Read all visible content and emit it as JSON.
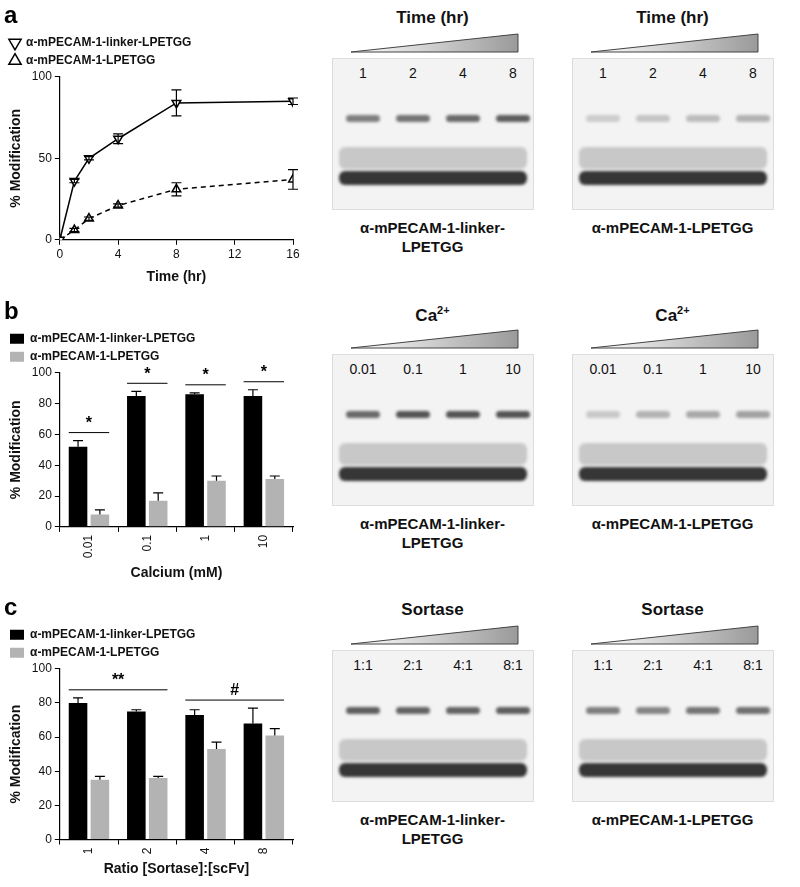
{
  "chart_data": [
    {
      "type": "line",
      "title": "a",
      "x": [
        0,
        1,
        2,
        4,
        8,
        16
      ],
      "xlim": [
        0,
        16
      ],
      "xticks": [
        0,
        4,
        8,
        12,
        16
      ],
      "ylim": [
        0,
        100
      ],
      "yticks": [
        0,
        50,
        100
      ],
      "xlabel": "Time (hr)",
      "ylabel": "% Modification",
      "grid": false,
      "legend": "top-left",
      "series": [
        {
          "name": "α-mPECAM-1-linker-LPETGG",
          "color": "#000000",
          "marker": "triangle-down",
          "line_style": "solid",
          "values": [
            0,
            36,
            50,
            62,
            84,
            85
          ],
          "errors": [
            0,
            1,
            1,
            3,
            8,
            2
          ]
        },
        {
          "name": "α-mPECAM-1-LPETGG",
          "color": "#000000",
          "marker": "triangle-up",
          "line_style": "dashed",
          "values": [
            0,
            6,
            13,
            21,
            31,
            37
          ],
          "errors": [
            0,
            1,
            1,
            1,
            4,
            6
          ]
        }
      ]
    },
    {
      "type": "bar",
      "title": "b",
      "categories": [
        "0.01",
        "0.1",
        "1",
        "10"
      ],
      "ylim": [
        0,
        100
      ],
      "yticks": [
        0,
        20,
        40,
        60,
        80,
        100
      ],
      "xlabel": "Calcium (mM)",
      "ylabel": "% Modification",
      "grid": false,
      "legend": "top-left",
      "series": [
        {
          "name": "α-mPECAM-1-linker-LPETGG",
          "color": "#000000",
          "values": [
            52,
            85,
            86,
            85
          ],
          "errors": [
            4,
            3,
            1,
            4
          ]
        },
        {
          "name": "α-mPECAM-1-LPETGG",
          "color": "#b3b3b3",
          "values": [
            8,
            17,
            30,
            31
          ],
          "errors": [
            3,
            5,
            3,
            2
          ]
        }
      ],
      "annotations": [
        {
          "text": "*",
          "categories": [
            "0.01"
          ]
        },
        {
          "text": "*",
          "categories": [
            "0.1"
          ]
        },
        {
          "text": "*",
          "categories": [
            "1"
          ]
        },
        {
          "text": "*",
          "categories": [
            "10"
          ]
        }
      ]
    },
    {
      "type": "bar",
      "title": "c",
      "categories": [
        "1",
        "2",
        "4",
        "8"
      ],
      "ylim": [
        0,
        100
      ],
      "yticks": [
        0,
        20,
        40,
        60,
        80,
        100
      ],
      "xlabel": "Ratio [Sortase]:[scFv]",
      "ylabel": "% Modification",
      "grid": false,
      "legend": "top-left",
      "series": [
        {
          "name": "α-mPECAM-1-linker-LPETGG",
          "color": "#000000",
          "values": [
            80,
            75,
            73,
            68
          ],
          "errors": [
            3,
            1,
            3,
            9
          ]
        },
        {
          "name": "α-mPECAM-1-LPETGG",
          "color": "#b3b3b3",
          "values": [
            35,
            36,
            53,
            61
          ],
          "errors": [
            2,
            1,
            4,
            4
          ]
        }
      ],
      "annotations": [
        {
          "text": "**",
          "categories": [
            "1",
            "2"
          ]
        },
        {
          "text": "#",
          "categories": [
            "4",
            "8"
          ]
        }
      ]
    }
  ],
  "gels": [
    {
      "title": "Time (hr)",
      "lanes": [
        "1",
        "2",
        "4",
        "8"
      ],
      "caption": "α-mPECAM-1-linker-LPETGG"
    },
    {
      "title": "Time (hr)",
      "lanes": [
        "1",
        "2",
        "4",
        "8"
      ],
      "caption": "α-mPECAM-1-LPETGG"
    },
    {
      "title": "Ca2+",
      "lanes": [
        "0.01",
        "0.1",
        "1",
        "10"
      ],
      "caption": "α-mPECAM-1-linker-LPETGG"
    },
    {
      "title": "Ca2+",
      "lanes": [
        "0.01",
        "0.1",
        "1",
        "10"
      ],
      "caption": "α-mPECAM-1-LPETGG"
    },
    {
      "title": "Sortase",
      "lanes": [
        "1:1",
        "2:1",
        "4:1",
        "8:1"
      ],
      "caption": "α-mPECAM-1-linker-LPETGG"
    },
    {
      "title": "Sortase",
      "lanes": [
        "1:1",
        "2:1",
        "4:1",
        "8:1"
      ],
      "caption": "α-mPECAM-1-LPETGG"
    }
  ]
}
